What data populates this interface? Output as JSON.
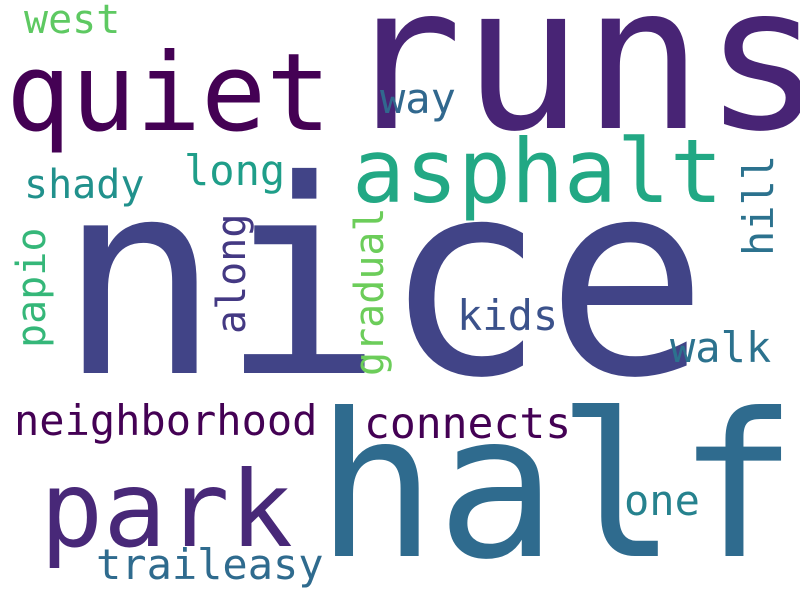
{
  "words": [
    {
      "text": "nice",
      "color": "#414487"
    },
    {
      "text": "runs",
      "color": "#482475"
    },
    {
      "text": "half",
      "color": "#2f6b8e"
    },
    {
      "text": "quiet",
      "color": "#440154"
    },
    {
      "text": "asphalt",
      "color": "#22a884"
    },
    {
      "text": "park",
      "color": "#482878"
    },
    {
      "text": "neighborhood",
      "color": "#440154"
    },
    {
      "text": "connects",
      "color": "#440154"
    },
    {
      "text": "traileasy",
      "color": "#2f6b8e"
    },
    {
      "text": "walk",
      "color": "#2c728e"
    },
    {
      "text": "kids",
      "color": "#3b528b"
    },
    {
      "text": "shady",
      "color": "#21918c"
    },
    {
      "text": "long",
      "color": "#1f9e89"
    },
    {
      "text": "way",
      "color": "#31688e"
    },
    {
      "text": "one",
      "color": "#26828e"
    },
    {
      "text": "west",
      "color": "#5ec962"
    },
    {
      "text": "papio",
      "color": "#35b779"
    },
    {
      "text": "along",
      "color": "#443983"
    },
    {
      "text": "gradual",
      "color": "#6ccd5a"
    },
    {
      "text": "hill",
      "color": "#2c728e"
    }
  ]
}
